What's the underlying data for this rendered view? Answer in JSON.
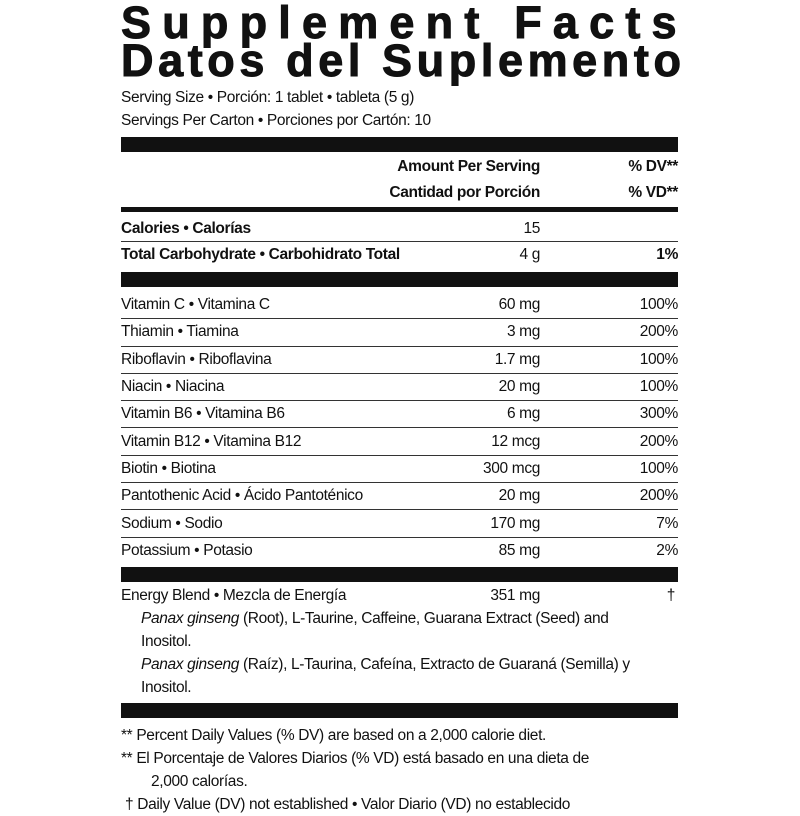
{
  "title_en": "Supplement Facts",
  "title_es": "Datos del Suplemento",
  "serving_size": "Serving Size • Porción: 1 tablet • tableta (5 g)",
  "servings_per": "Servings Per Carton • Porciones por Cartón: 10",
  "header": {
    "amount_en": "Amount Per Serving",
    "dv_en": "% DV**",
    "amount_es": "Cantidad por Porción",
    "dv_es": "% VD**"
  },
  "macros": [
    {
      "name": "Calories • Calorías",
      "amount": "15",
      "dv": ""
    },
    {
      "name": "Total Carbohydrate • Carbohidrato Total",
      "amount": "4 g",
      "dv": "1%"
    }
  ],
  "nutrients": [
    {
      "name": "Vitamin C • Vitamina C",
      "amount": "60 mg",
      "dv": "100%"
    },
    {
      "name": "Thiamin • Tiamina",
      "amount": "3 mg",
      "dv": "200%"
    },
    {
      "name": "Riboflavin • Riboflavina",
      "amount": "1.7 mg",
      "dv": "100%"
    },
    {
      "name": "Niacin • Niacina",
      "amount": "20 mg",
      "dv": "100%"
    },
    {
      "name": "Vitamin B6 • Vitamina B6",
      "amount": "6 mg",
      "dv": "300%"
    },
    {
      "name": "Vitamin B12 • Vitamina B12",
      "amount": "12 mcg",
      "dv": "200%"
    },
    {
      "name": "Biotin • Biotina",
      "amount": "300 mcg",
      "dv": "100%"
    },
    {
      "name": "Pantothenic Acid • Ácido Pantoténico",
      "amount": "20 mg",
      "dv": "200%"
    },
    {
      "name": "Sodium • Sodio",
      "amount": "170 mg",
      "dv": "7%"
    },
    {
      "name": "Potassium • Potasio",
      "amount": "85 mg",
      "dv": "2%"
    }
  ],
  "blend": {
    "name": "Energy Blend • Mezcla de Energía",
    "amount": "351 mg",
    "dv": "†",
    "ingredients_en_italic": "Panax ginseng",
    "ingredients_en": " (Root), L-Taurine, Caffeine, Guarana Extract (Seed) and Inositol.",
    "ingredients_es_italic": "Panax ginseng",
    "ingredients_es": " (Raíz), L-Taurina, Cafeína, Extracto de Guaraná (Semilla) y Inositol."
  },
  "footnotes": {
    "dv_en": "** Percent Daily Values (% DV) are based on a 2,000 calorie diet.",
    "dv_es": "** El Porcentaje de Valores Diarios (% VD) está basado en una dieta de",
    "dv_es_cont": "2,000 calorías.",
    "dagger": "† Daily Value (DV) not established • Valor Diario (VD) no establecido"
  }
}
